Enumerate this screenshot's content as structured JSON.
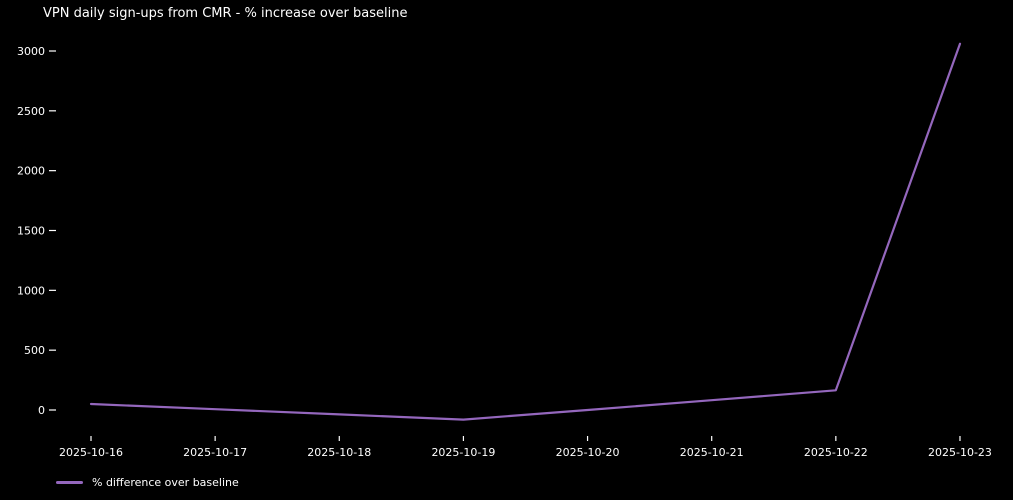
{
  "chart_data": {
    "type": "line",
    "title": "VPN daily sign-ups from CMR - % increase over baseline",
    "categories": [
      "2025-10-16",
      "2025-10-17",
      "2025-10-18",
      "2025-10-19",
      "2025-10-20",
      "2025-10-21",
      "2025-10-22",
      "2025-10-23"
    ],
    "series": [
      {
        "name": "% difference over baseline",
        "values": [
          50,
          7,
          -37,
          -80,
          0,
          82,
          165,
          3060
        ],
        "color": "#9467bd"
      }
    ],
    "xlabel": "",
    "ylabel": "",
    "yticks": [
      0,
      500,
      1000,
      1500,
      2000,
      2500,
      3000
    ],
    "ylim": [
      -230,
      3180
    ],
    "grid": false,
    "legend_position": "lower-left-below-axes",
    "colors": {
      "background": "#000000",
      "text": "#ffffff",
      "line": "#9467bd"
    }
  }
}
